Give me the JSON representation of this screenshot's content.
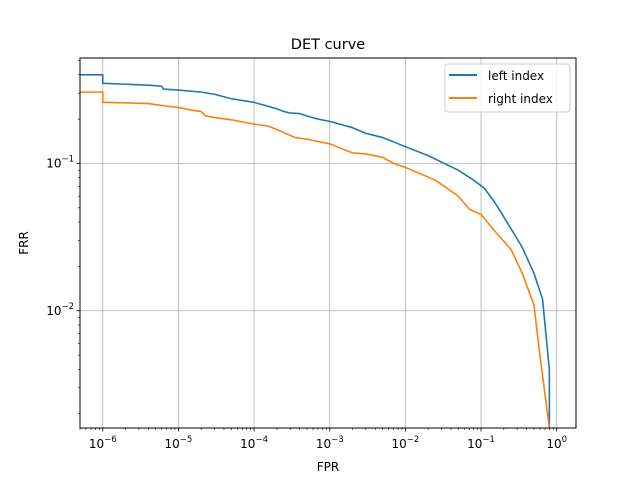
{
  "chart_data": {
    "type": "line",
    "title": "DET curve",
    "xlabel": "FPR",
    "ylabel": "FRR",
    "xscale": "log",
    "yscale": "log",
    "xlim": [
      5e-07,
      1.8
    ],
    "ylim": [
      0.0016,
      0.52
    ],
    "grid": true,
    "legend_placement": "top-right",
    "x_ticks": [
      {
        "value": 1e-06,
        "base": "10",
        "exp": "−6"
      },
      {
        "value": 1e-05,
        "base": "10",
        "exp": "−5"
      },
      {
        "value": 0.0001,
        "base": "10",
        "exp": "−4"
      },
      {
        "value": 0.001,
        "base": "10",
        "exp": "−3"
      },
      {
        "value": 0.01,
        "base": "10",
        "exp": "−2"
      },
      {
        "value": 0.1,
        "base": "10",
        "exp": "−1"
      },
      {
        "value": 1,
        "base": "10",
        "exp": "0"
      }
    ],
    "y_ticks": [
      {
        "value": 0.01,
        "base": "10",
        "exp": "−2"
      },
      {
        "value": 0.1,
        "base": "10",
        "exp": "−1"
      }
    ],
    "series": [
      {
        "name": "left index",
        "color": "#1f77b4",
        "points": [
          [
            5e-07,
            0.4
          ],
          [
            1e-06,
            0.4
          ],
          [
            1e-06,
            0.35
          ],
          [
            2e-06,
            0.345
          ],
          [
            4e-06,
            0.34
          ],
          [
            6e-06,
            0.335
          ],
          [
            6.3e-06,
            0.32
          ],
          [
            1e-05,
            0.315
          ],
          [
            2e-05,
            0.305
          ],
          [
            3e-05,
            0.295
          ],
          [
            5e-05,
            0.275
          ],
          [
            0.0001,
            0.26
          ],
          [
            0.0002,
            0.235
          ],
          [
            0.00025,
            0.225
          ],
          [
            0.0003,
            0.22
          ],
          [
            0.0004,
            0.218
          ],
          [
            0.0005,
            0.21
          ],
          [
            0.0007,
            0.2
          ],
          [
            0.001,
            0.193
          ],
          [
            0.002,
            0.175
          ],
          [
            0.003,
            0.16
          ],
          [
            0.005,
            0.15
          ],
          [
            0.01,
            0.13
          ],
          [
            0.02,
            0.113
          ],
          [
            0.05,
            0.09
          ],
          [
            0.08,
            0.077
          ],
          [
            0.11,
            0.068
          ],
          [
            0.15,
            0.055
          ],
          [
            0.22,
            0.04
          ],
          [
            0.35,
            0.027
          ],
          [
            0.5,
            0.018
          ],
          [
            0.65,
            0.012
          ],
          [
            0.8,
            0.004
          ],
          [
            0.8,
            0.0016
          ]
        ]
      },
      {
        "name": "right index",
        "color": "#ff7f0e",
        "points": [
          [
            5e-07,
            0.305
          ],
          [
            1e-06,
            0.305
          ],
          [
            1e-06,
            0.26
          ],
          [
            2e-06,
            0.258
          ],
          [
            4e-06,
            0.255
          ],
          [
            7e-06,
            0.245
          ],
          [
            1e-05,
            0.24
          ],
          [
            1.5e-05,
            0.23
          ],
          [
            2e-05,
            0.225
          ],
          [
            2.3e-05,
            0.21
          ],
          [
            3e-05,
            0.205
          ],
          [
            5e-05,
            0.198
          ],
          [
            0.0001,
            0.185
          ],
          [
            0.00015,
            0.18
          ],
          [
            0.0002,
            0.17
          ],
          [
            0.0003,
            0.155
          ],
          [
            0.00035,
            0.15
          ],
          [
            0.0005,
            0.146
          ],
          [
            0.001,
            0.136
          ],
          [
            0.0015,
            0.125
          ],
          [
            0.002,
            0.118
          ],
          [
            0.003,
            0.116
          ],
          [
            0.005,
            0.11
          ],
          [
            0.007,
            0.1
          ],
          [
            0.01,
            0.094
          ],
          [
            0.025,
            0.077
          ],
          [
            0.05,
            0.06
          ],
          [
            0.07,
            0.049
          ],
          [
            0.1,
            0.045
          ],
          [
            0.15,
            0.035
          ],
          [
            0.25,
            0.026
          ],
          [
            0.35,
            0.018
          ],
          [
            0.5,
            0.011
          ],
          [
            0.6,
            0.005
          ],
          [
            0.8,
            0.0016
          ]
        ]
      }
    ]
  }
}
